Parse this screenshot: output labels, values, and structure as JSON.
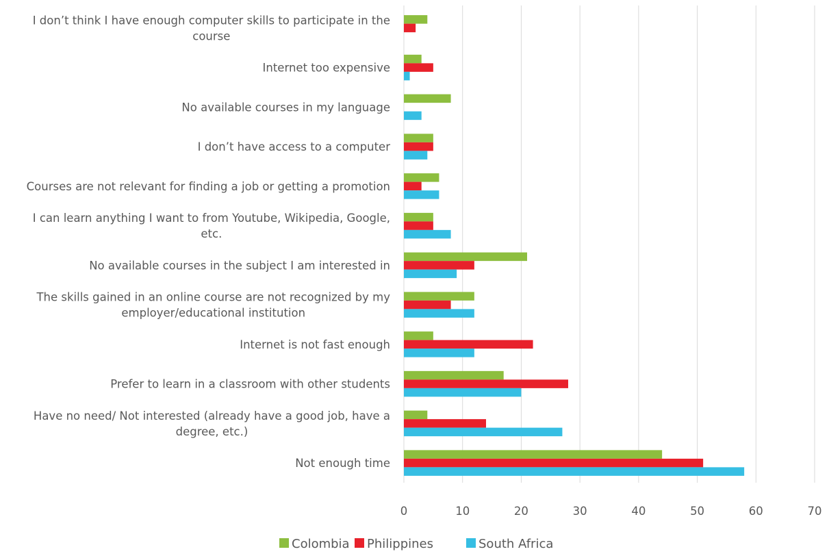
{
  "chart_data": {
    "type": "bar",
    "orientation": "horizontal",
    "categories": [
      "I don’t think I have enough computer skills to participate in the course",
      "Internet too expensive",
      "No available courses in my language",
      "I don’t have access to a computer",
      "Courses are not relevant for finding a job or getting a promotion",
      "I can learn anything I want to from Youtube, Wikipedia, Google, etc.",
      "No available courses in the subject I am interested in",
      "The skills gained in an online course are not recognized by my employer/educational institution",
      "Internet is not fast enough",
      "Prefer to learn in a classroom with other students",
      "Have no need/ Not interested (already have a good job, have a degree, etc.)",
      "Not enough time"
    ],
    "category_lines": [
      [
        "I don’t think I have enough computer skills to participate in the",
        "course"
      ],
      [
        "Internet too expensive"
      ],
      [
        "No available courses in my language"
      ],
      [
        "I don’t have access to a computer"
      ],
      [
        "Courses are not relevant for finding a job or getting a promotion"
      ],
      [
        "I can learn anything I want to from Youtube, Wikipedia, Google,",
        "etc."
      ],
      [
        "No available courses in the subject I am interested in"
      ],
      [
        "The skills gained in an online course are not recognized by my",
        "employer/educational institution"
      ],
      [
        "Internet is not fast enough"
      ],
      [
        "Prefer to learn in a classroom with other students"
      ],
      [
        "Have no need/ Not interested (already have a good job, have a",
        "degree, etc.)"
      ],
      [
        "Not enough time"
      ]
    ],
    "series": [
      {
        "name": "Colombia",
        "color": "#8DBE3F",
        "values": [
          4,
          3,
          8,
          5,
          6,
          5,
          21,
          12,
          5,
          17,
          4,
          44
        ]
      },
      {
        "name": "Philippines",
        "color": "#E8212B",
        "values": [
          2,
          5,
          0,
          5,
          3,
          5,
          12,
          8,
          22,
          28,
          14,
          51
        ]
      },
      {
        "name": "South Africa",
        "color": "#36BEE3",
        "values": [
          0,
          1,
          3,
          4,
          6,
          8,
          9,
          12,
          12,
          20,
          27,
          58
        ]
      }
    ],
    "xlim": [
      0,
      70
    ],
    "xticks": [
      0,
      10,
      20,
      30,
      40,
      50,
      60,
      70
    ],
    "grid": true,
    "legend_position": "bottom",
    "title": "",
    "xlabel": "",
    "ylabel": ""
  }
}
